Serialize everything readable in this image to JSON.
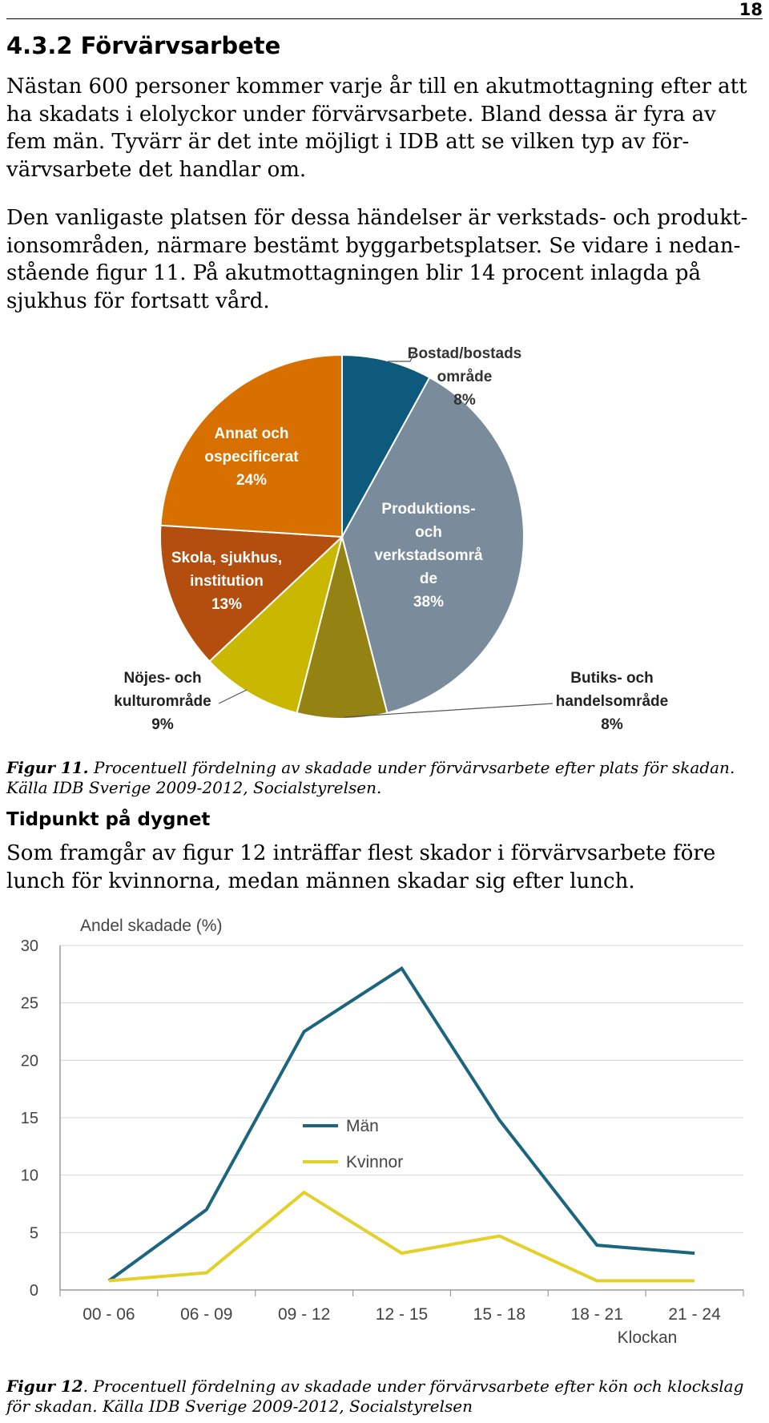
{
  "page": {
    "number": "18"
  },
  "section": {
    "heading": "4.3.2 Förvärvsarbete",
    "paragraphs": [
      [
        "Nästan 600 personer kommer varje år till en akutmottagning efter att",
        "ha skadats i elolyckor under förvärvsarbete. Bland dessa är fyra av",
        "fem män. Tyvärr är det inte möjligt i IDB att se vilken typ av för-",
        "värvsarbete det handlar om."
      ],
      [
        "Den vanligaste platsen för dessa händelser är verkstads- och produkt-",
        "ionsområden, närmare bestämt byggarbetsplatser. Se vidare i nedan-",
        "stående figur 11. På akutmottagningen blir 14 procent inlagda på",
        "sjukhus för fortsatt vård."
      ]
    ]
  },
  "figure11": {
    "caption_label": "Figur 11.",
    "caption_lines": [
      "Procentuell fördelning av skadade under förvärvsarbete efter plats för skadan.",
      "Källa IDB Sverige 2009-2012, Socialstyrelsen."
    ]
  },
  "subsection": {
    "heading": "Tidpunkt på dygnet",
    "paragraph": [
      "Som framgår av figur 12 inträffar flest skador i förvärvsarbete före",
      "lunch för kvinnorna, medan männen skadar sig efter lunch."
    ]
  },
  "figure12": {
    "caption_label": "Figur 12",
    "caption_lines": [
      ". Procentuell fördelning av skadade under förvärvsarbete efter kön och klockslag",
      "för skadan. Källa IDB Sverige 2009-2012, Socialstyrelsen"
    ]
  },
  "chart_data": [
    {
      "type": "pie",
      "start": "top",
      "direction": "clockwise",
      "slices": [
        {
          "label_lines": [
            "Bostad/bostads",
            "område",
            "8%"
          ],
          "value": 8,
          "color": "#0E5A7C"
        },
        {
          "label_lines": [
            "Produktions-",
            "och",
            "verkstadsområ",
            "de",
            "38%"
          ],
          "value": 38,
          "color": "#7A8B9B"
        },
        {
          "label_lines": [
            "Butiks- och",
            "handelsområde",
            "8%"
          ],
          "value": 8,
          "color": "#948313"
        },
        {
          "label_lines": [
            "Nöjes- och",
            "kulturområde",
            "9%"
          ],
          "value": 9,
          "color": "#C9B700"
        },
        {
          "label_lines": [
            "Skola, sjukhus,",
            "institution",
            "13%"
          ],
          "value": 13,
          "color": "#B34E0E"
        },
        {
          "label_lines": [
            "Annat och",
            "ospecificerat",
            "24%"
          ],
          "value": 24,
          "color": "#D87000"
        }
      ]
    },
    {
      "type": "line",
      "ylabel": "Andel skadade (%)",
      "xlabel": "Klockan",
      "ylim": [
        0,
        30
      ],
      "yticks": [
        0,
        5,
        10,
        15,
        20,
        25,
        30
      ],
      "grid": true,
      "legend": "center",
      "categories": [
        "00 - 06",
        "06 - 09",
        "09 - 12",
        "12 - 15",
        "15 - 18",
        "18 - 21",
        "21 - 24"
      ],
      "series": [
        {
          "name": "Män",
          "color": "#1C6580",
          "values": [
            0.8,
            7.0,
            22.5,
            28.0,
            14.8,
            3.9,
            3.2
          ]
        },
        {
          "name": "Kvinnor",
          "color": "#E3D02A",
          "values": [
            0.8,
            1.5,
            8.5,
            3.2,
            4.7,
            0.8,
            0.8
          ]
        }
      ]
    }
  ]
}
